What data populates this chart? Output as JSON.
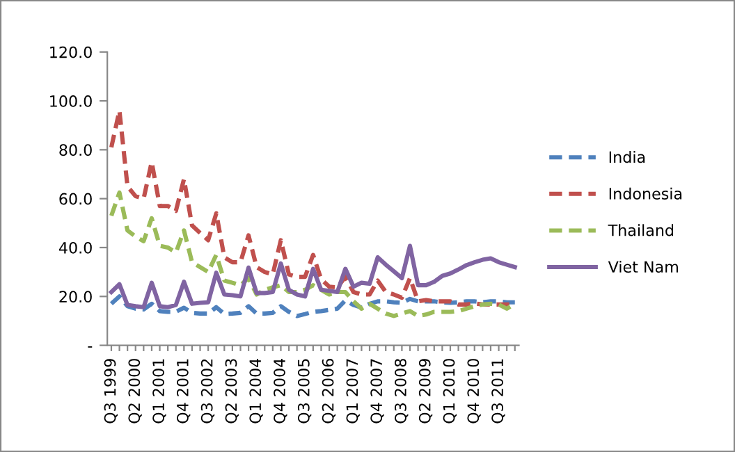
{
  "chart_data": {
    "type": "line",
    "categories": [
      "Q3 1999",
      null,
      null,
      "Q2 2000",
      null,
      null,
      "Q1 2001",
      null,
      null,
      "Q4 2001",
      null,
      null,
      "Q3 2002",
      null,
      null,
      "Q2 2003",
      null,
      null,
      "Q1 2004",
      null,
      null,
      "Q4 2004",
      null,
      null,
      "Q3 2005",
      null,
      null,
      "Q2 2006",
      null,
      null,
      "Q1 2007",
      null,
      null,
      "Q4 2007",
      null,
      null,
      "Q3 2008",
      null,
      null,
      "Q2 2009",
      null,
      null,
      "Q1 2010",
      null,
      null,
      "Q4 2010",
      null,
      null,
      "Q3 2011",
      null,
      null
    ],
    "series": [
      {
        "name": "India",
        "color": "#4f81bd",
        "line_style": "dashed",
        "values": [
          17,
          20,
          16,
          15,
          14.7,
          17,
          14,
          13.7,
          13.7,
          15.4,
          13.3,
          13,
          13,
          15.6,
          12.8,
          13,
          13.3,
          16,
          13,
          13,
          13.3,
          16,
          13.7,
          12,
          12.8,
          13.7,
          14,
          14.5,
          15,
          18.4,
          16.5,
          15.4,
          17,
          18,
          18,
          17.6,
          17.4,
          19,
          18,
          18,
          18,
          17.6,
          17.4,
          17.6,
          18,
          18,
          17.6,
          18,
          18,
          17.6,
          17.6
        ]
      },
      {
        "name": "Indonesia",
        "color": "#c0504d",
        "line_style": "dashed",
        "values": [
          81,
          96,
          65,
          61,
          60,
          75,
          57,
          57,
          55,
          68,
          49,
          46,
          43,
          54,
          36,
          34,
          34,
          45,
          32,
          30,
          29,
          43,
          29,
          28,
          28,
          37,
          27,
          24,
          23.7,
          28,
          21.8,
          20.8,
          20.8,
          26.5,
          21.8,
          20.8,
          19.5,
          27.5,
          18,
          18.5,
          18,
          18,
          18,
          16.7,
          16.7,
          17.2,
          16.7,
          16.7,
          16.7,
          16.7,
          16.7
        ]
      },
      {
        "name": "Thailand",
        "color": "#9bbb59",
        "line_style": "dashed",
        "values": [
          53,
          62.5,
          47,
          44.5,
          42.6,
          52,
          40.7,
          40,
          38,
          47,
          34,
          32,
          30,
          37,
          26.5,
          25.6,
          24.6,
          27.5,
          20.8,
          22.7,
          23.7,
          24.6,
          21.8,
          21.8,
          22.7,
          24.6,
          22.7,
          20.8,
          21.8,
          21.8,
          18,
          15,
          17,
          15,
          13,
          12,
          13,
          14,
          12,
          12.6,
          13.7,
          13.7,
          13.7,
          14,
          15,
          16,
          16.7,
          17,
          16.7,
          15,
          17
        ]
      },
      {
        "name": "Viet Nam",
        "color": "#8064a2",
        "line_style": "solid",
        "values": [
          21.8,
          25,
          16.5,
          16,
          15.6,
          25.6,
          16,
          15.6,
          16.5,
          26,
          17,
          17.4,
          17.6,
          29.7,
          20.8,
          20.5,
          20,
          31.8,
          21.4,
          21.4,
          21.8,
          33.5,
          22.7,
          20.8,
          20,
          31.3,
          22.7,
          22.3,
          21.8,
          31.3,
          24,
          25.6,
          25.2,
          36,
          33,
          30.3,
          27.5,
          40.7,
          24.6,
          24.6,
          26,
          28.4,
          29.4,
          31,
          32.8,
          34,
          35,
          35.6,
          34,
          33,
          32
        ]
      }
    ],
    "ylim": [
      0,
      120
    ],
    "yticks": [
      {
        "value": 0,
        "label": "-"
      },
      {
        "value": 20,
        "label": "20.0"
      },
      {
        "value": 40,
        "label": "40.0"
      },
      {
        "value": 60,
        "label": "60.0"
      },
      {
        "value": 80,
        "label": "80.0"
      },
      {
        "value": 100,
        "label": "100.0"
      },
      {
        "value": 120,
        "label": "120.0"
      }
    ],
    "grid": false,
    "legend": "right",
    "marker": "none"
  }
}
